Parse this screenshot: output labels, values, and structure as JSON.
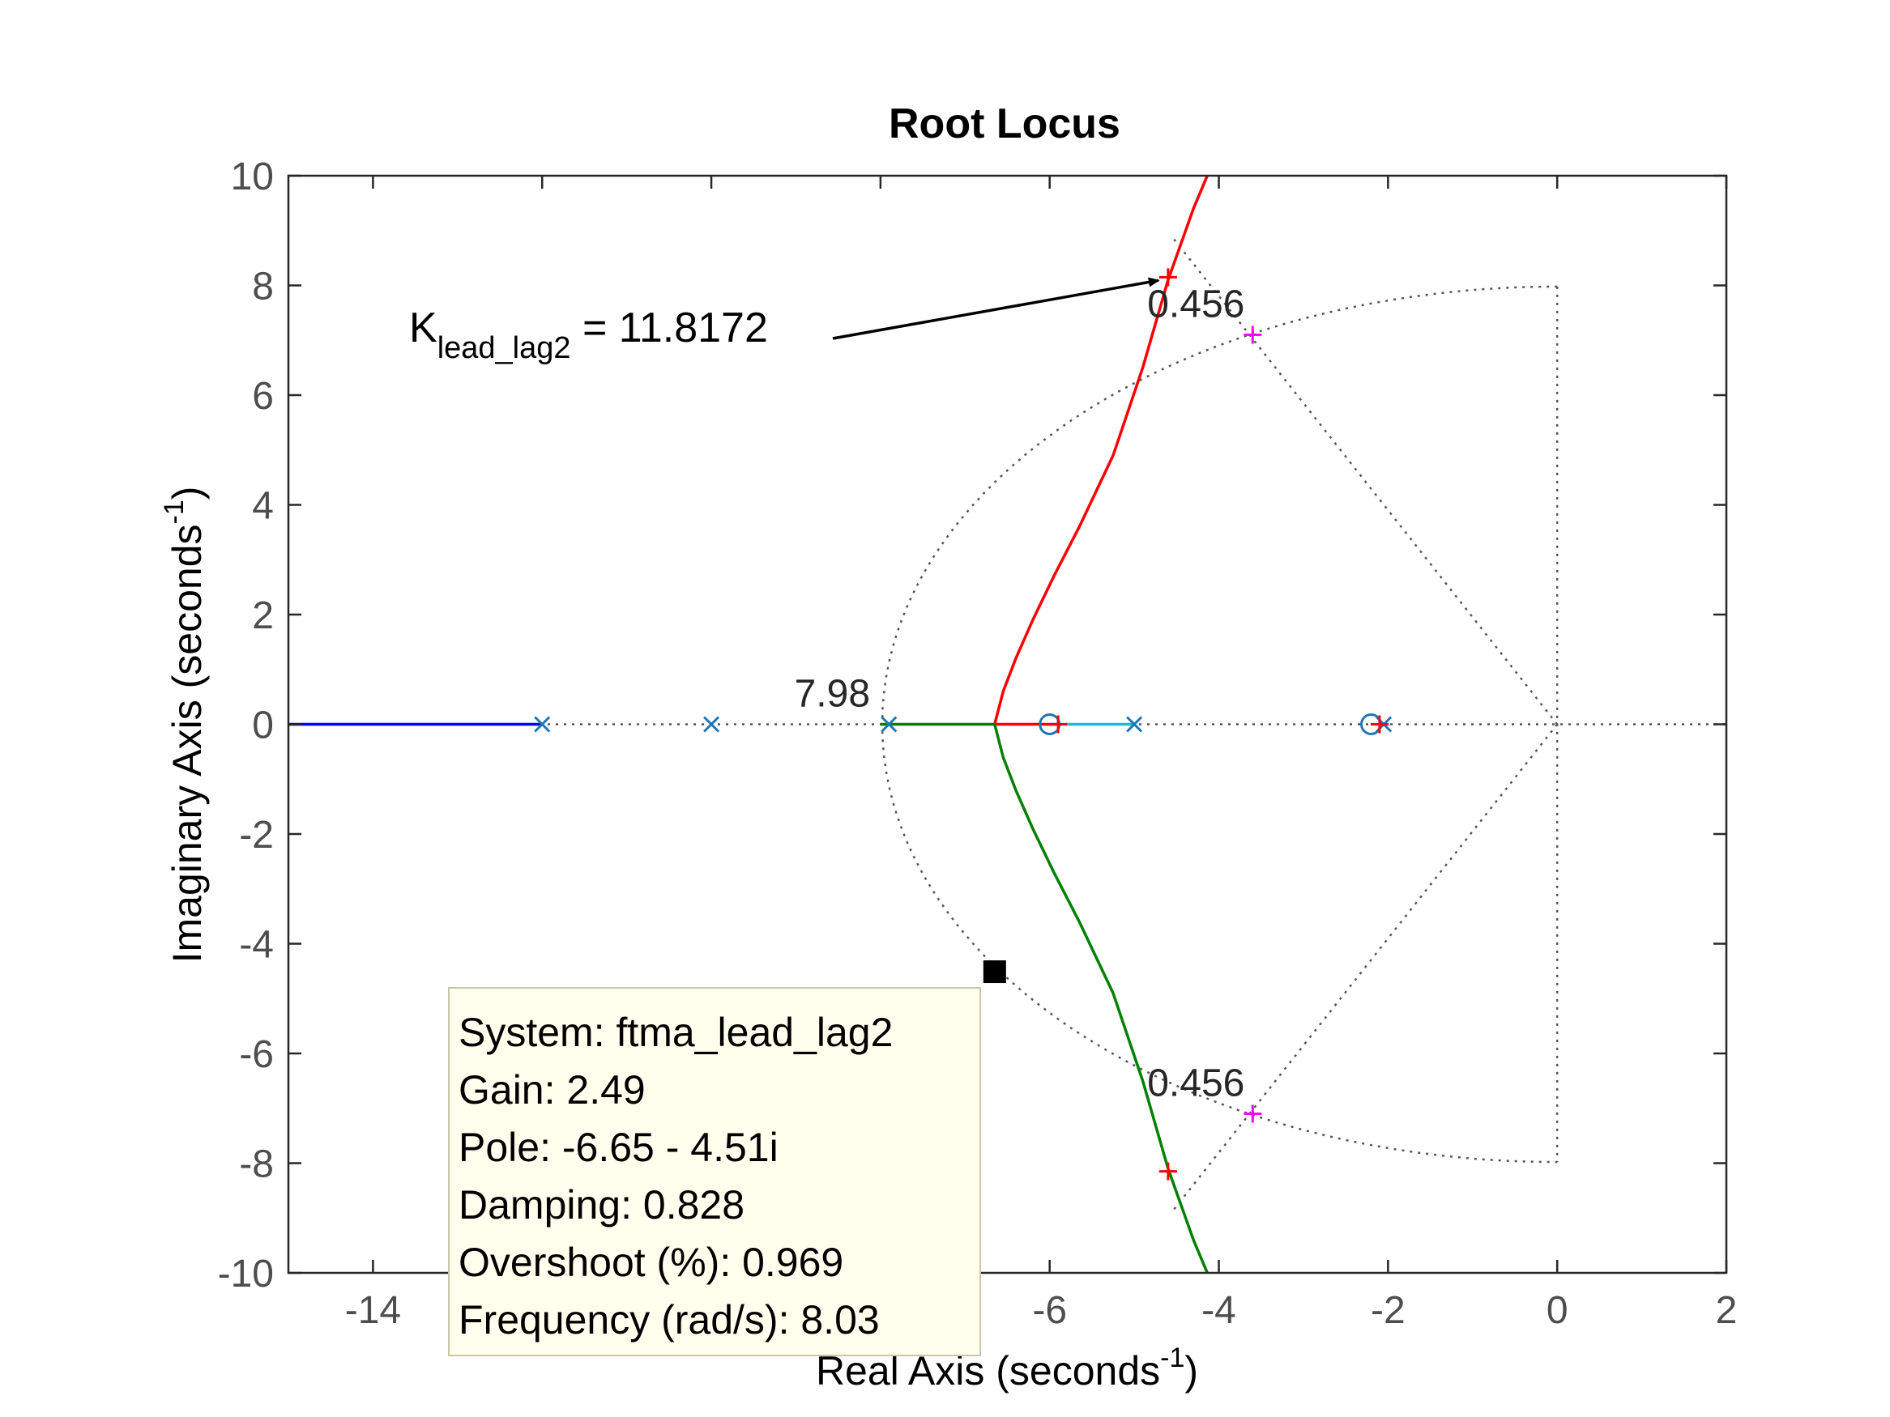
{
  "chart_data": {
    "type": "line",
    "title": "Root Locus",
    "xlabel": "Real Axis (seconds",
    "ylabel": "Imaginary Axis (seconds",
    "axis_unit_superscript": "-1",
    "xlim": [
      -15,
      2
    ],
    "ylim": [
      -10,
      10
    ],
    "xticks": [
      -14,
      -12,
      -10,
      -8,
      -6,
      -4,
      -2,
      0,
      2
    ],
    "xtick_labels": [
      "-14",
      "",
      "",
      "",
      "-6",
      "-4",
      "-2",
      "0",
      "2"
    ],
    "yticks": [
      -10,
      -8,
      -6,
      -4,
      -2,
      0,
      2,
      4,
      6,
      8,
      10
    ],
    "ytick_labels": [
      "-10",
      "-8",
      "-6",
      "-4",
      "-2",
      "0",
      "2",
      "4",
      "6",
      "8",
      "10"
    ],
    "grid": false,
    "colors": {
      "branch_upper": "#ff0000",
      "branch_lower": "#008000",
      "branch_far_left": "#0000ff",
      "branch_mid": "#17becf",
      "pole_zero": "#1f77b4",
      "damping_marker": "#ff00ff",
      "gain_marker": "#ff0000",
      "grid_lines": "#555555",
      "datatip_bg": "#ffffee"
    },
    "series": [
      {
        "color_key": "branch_upper",
        "x": [
          -6.65,
          -6.55,
          -6.4,
          -6.2,
          -5.95,
          -5.65,
          -5.25,
          -4.9,
          -4.6,
          -4.3,
          -4.0,
          -3.6
        ],
        "y": [
          0,
          0.6,
          1.2,
          1.9,
          2.7,
          3.6,
          4.9,
          6.5,
          8.1,
          9.4,
          10.5,
          12.0
        ]
      },
      {
        "color_key": "branch_upper",
        "x": [
          -6.65,
          -5.9
        ],
        "y": [
          0,
          0
        ]
      },
      {
        "color_key": "branch_lower",
        "x": [
          -6.65,
          -6.55,
          -6.4,
          -6.2,
          -5.95,
          -5.65,
          -5.25,
          -4.9,
          -4.6,
          -4.3,
          -4.0,
          -3.6
        ],
        "y": [
          0,
          -0.6,
          -1.2,
          -1.9,
          -2.7,
          -3.6,
          -4.9,
          -6.5,
          -8.1,
          -9.4,
          -10.5,
          -12.0
        ]
      },
      {
        "color_key": "branch_lower",
        "x": [
          -8.0,
          -6.65
        ],
        "y": [
          0,
          0
        ]
      },
      {
        "color_key": "branch_far_left",
        "x": [
          -15,
          -12.0
        ],
        "y": [
          0,
          0
        ]
      },
      {
        "color_key": "branch_mid",
        "x": [
          -6.0,
          -5.0
        ],
        "y": [
          0,
          0
        ]
      }
    ],
    "poles": [
      [
        -12,
        0
      ],
      [
        -10,
        0
      ],
      [
        -7.9,
        0
      ],
      [
        -5,
        0
      ],
      [
        -2.05,
        0
      ]
    ],
    "zeros": [
      [
        -6,
        0
      ],
      [
        -2.2,
        0
      ]
    ],
    "gain_markers": [
      [
        -4.6,
        8.15
      ],
      [
        -4.6,
        -8.15
      ],
      [
        -5.9,
        0
      ],
      [
        -2.1,
        0
      ]
    ],
    "damping_markers": [
      [
        -3.6,
        7.1
      ],
      [
        -3.6,
        -7.1
      ]
    ],
    "damping_zeta": 0.456,
    "wn_arc_radius": 7.98,
    "grid_labels": [
      {
        "text": "0.456",
        "x": -3.6,
        "y": 7.1
      },
      {
        "text": "0.456",
        "x": -3.6,
        "y": -7.1
      },
      {
        "text": "7.98",
        "x": -7.9,
        "y": 0
      }
    ],
    "annotation": {
      "text_main": "K",
      "text_sub": "lead_lag2",
      "text_rest": " = 11.8172",
      "arrow_to": [
        -4.6,
        8.15
      ]
    },
    "datatip": {
      "point": [
        -6.65,
        -4.51
      ],
      "lines": [
        "System: ftma_lead_lag2",
        "Gain: 2.49",
        "Pole: -6.65 - 4.51i",
        "Damping: 0.828",
        "Overshoot (%): 0.969",
        "Frequency (rad/s): 8.03"
      ]
    }
  }
}
